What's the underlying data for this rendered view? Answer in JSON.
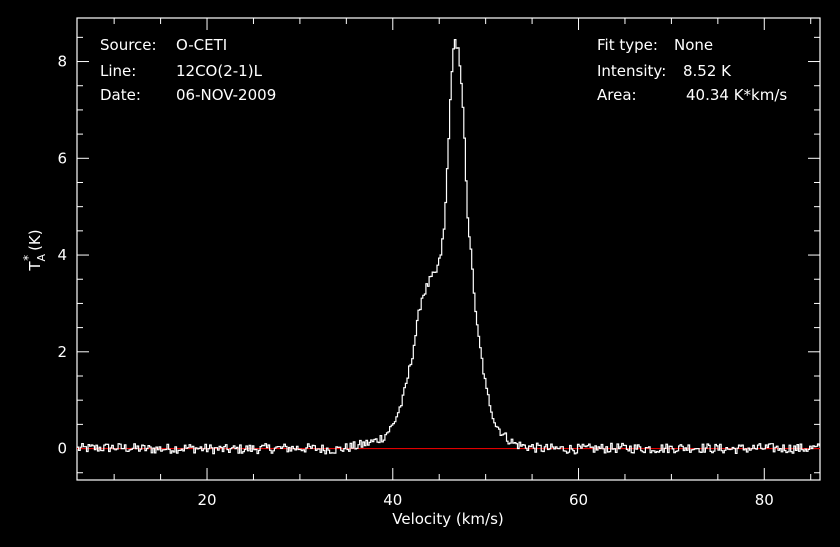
{
  "info": {
    "source_label": "Source:",
    "source_value": "O-CETI",
    "line_label": "Line:",
    "line_value": "12CO(2-1)L",
    "date_label": "Date:",
    "date_value": "06-NOV-2009",
    "fit_label": "Fit type:",
    "fit_value": "None",
    "intensity_label": "Intensity:",
    "intensity_value": "8.52 K",
    "area_label": "Area:",
    "area_value": "40.34 K*km/s"
  },
  "chart_data": {
    "type": "line",
    "xlabel": "Velocity (km/s)",
    "ylabel_main": "T",
    "ylabel_sub": "A",
    "ylabel_sup": "*",
    "ylabel_unit": "(K)",
    "xlim": [
      6,
      86
    ],
    "ylim": [
      -0.65,
      8.9
    ],
    "xticks": [
      20,
      40,
      60,
      80
    ],
    "yticks": [
      0,
      2,
      4,
      6,
      8
    ],
    "colors": {
      "background": "#000000",
      "spectrum": "#ffffff",
      "baseline": "#e00000",
      "axes": "#ffffff"
    },
    "baseline": 0,
    "series": [
      {
        "values": [
          [
            6,
            0.0
          ],
          [
            10,
            0.02
          ],
          [
            14,
            -0.01
          ],
          [
            18,
            0.01
          ],
          [
            22,
            -0.02
          ],
          [
            26,
            0.0
          ],
          [
            30,
            0.01
          ],
          [
            34,
            -0.02
          ],
          [
            36,
            0.05
          ],
          [
            37,
            0.1
          ],
          [
            38,
            0.15
          ],
          [
            39,
            0.25
          ],
          [
            40,
            0.5
          ],
          [
            41,
            1.0
          ],
          [
            42,
            1.9
          ],
          [
            43,
            3.1
          ],
          [
            44,
            3.5
          ],
          [
            44.5,
            3.6
          ],
          [
            45,
            3.9
          ],
          [
            45.5,
            4.6
          ],
          [
            46,
            6.7
          ],
          [
            46.5,
            8.5
          ],
          [
            47,
            8.2
          ],
          [
            47.5,
            7.0
          ],
          [
            48,
            4.8
          ],
          [
            49,
            2.5
          ],
          [
            50,
            1.2
          ],
          [
            51,
            0.5
          ],
          [
            52,
            0.25
          ],
          [
            53,
            0.1
          ],
          [
            54,
            0.05
          ],
          [
            56,
            0.0
          ],
          [
            60,
            -0.01
          ],
          [
            64,
            0.01
          ],
          [
            68,
            0.0
          ],
          [
            72,
            0.02
          ],
          [
            76,
            -0.01
          ],
          [
            80,
            0.01
          ],
          [
            84,
            0.0
          ],
          [
            86,
            0.01
          ]
        ]
      }
    ]
  }
}
